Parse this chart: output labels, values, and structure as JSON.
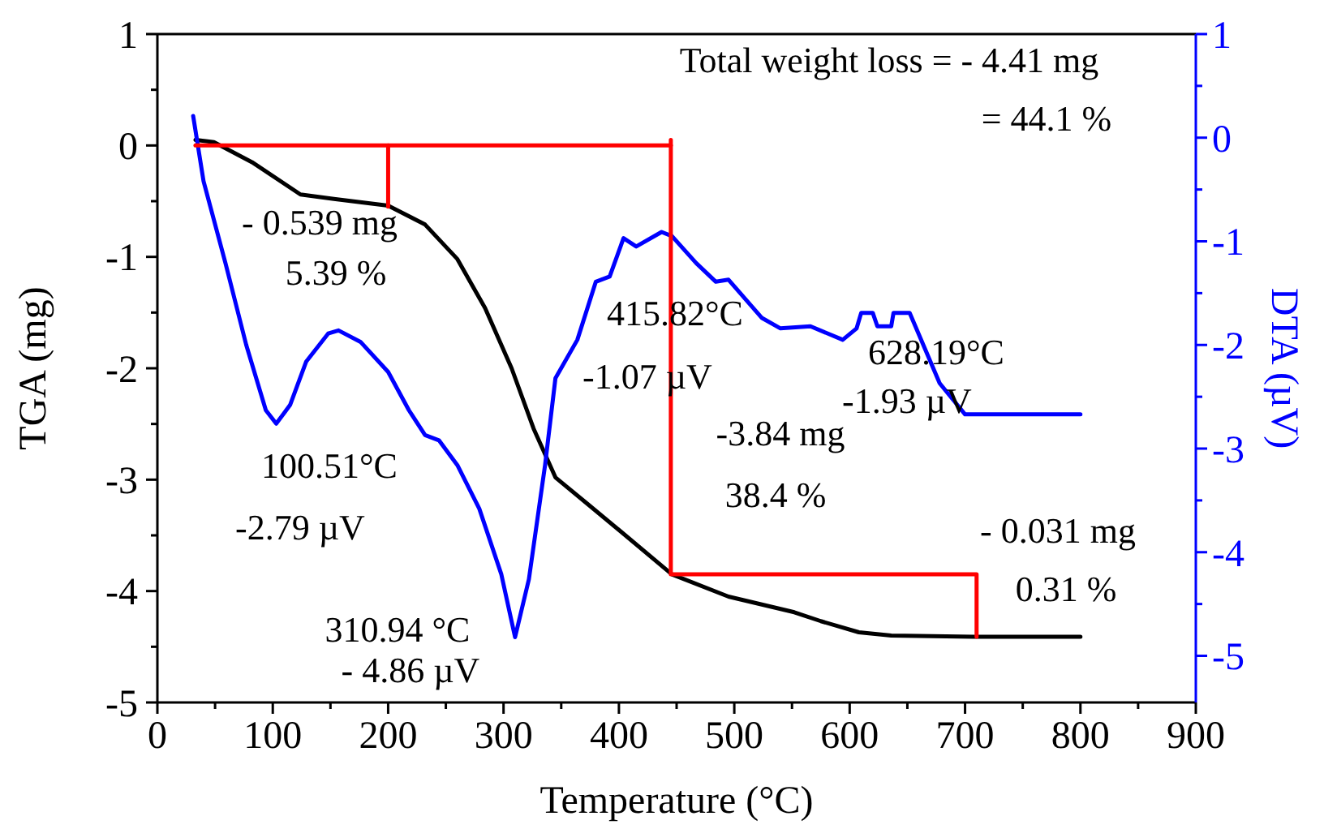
{
  "chart_data": {
    "type": "line",
    "xlabel": "Temperature (°C)",
    "ylabel": "TGA (mg)",
    "y2label": "DTA (µV)",
    "xlim": [
      0,
      900
    ],
    "xticks": [
      0,
      {
        "value": 50,
        "label": null
      },
      100,
      {
        "value": 150,
        "label": null
      },
      200,
      {
        "value": 250,
        "label": null
      },
      300,
      {
        "value": 350,
        "label": null
      },
      400,
      {
        "value": 450,
        "label": null
      },
      500,
      {
        "value": 550,
        "label": null
      },
      600,
      {
        "value": 650,
        "label": null
      },
      700,
      {
        "value": 750,
        "label": null
      },
      800,
      {
        "value": 850,
        "label": null
      },
      900
    ],
    "ylim": [
      -5,
      1
    ],
    "yticks": [
      -5,
      {
        "value": -4.5,
        "label": null
      },
      -4,
      {
        "value": -3.5,
        "label": null
      },
      -3,
      {
        "value": -2.5,
        "label": null
      },
      -2,
      {
        "value": -1.5,
        "label": null
      },
      -1,
      {
        "value": -0.5,
        "label": null
      },
      0,
      {
        "value": 0.5,
        "label": null
      },
      1
    ],
    "y2lim": [
      -5.45,
      1
    ],
    "y2ticks": [
      -5,
      {
        "value": -4.5,
        "label": null
      },
      -4,
      {
        "value": -3.5,
        "label": null
      },
      -3,
      {
        "value": -2.5,
        "label": null
      },
      -2,
      {
        "value": -1.5,
        "label": null
      },
      -1,
      {
        "value": -0.5,
        "label": null
      },
      0,
      {
        "value": 0.5,
        "label": null
      },
      1
    ],
    "grid": false,
    "marker": "none",
    "line_style": "solid",
    "series": [
      {
        "color": "#000000",
        "x": [
          33,
          49,
          82,
          124,
          153,
          200,
          232,
          260,
          284,
          307,
          326,
          345,
          373,
          401,
          446,
          495,
          552,
          575,
          608,
          636,
          707,
          800
        ],
        "values": [
          0.05,
          0.03,
          -0.15,
          -0.44,
          -0.48,
          -0.54,
          -0.71,
          -1.02,
          -1.46,
          -2.0,
          -2.54,
          -2.98,
          -3.22,
          -3.46,
          -3.85,
          -4.05,
          -4.19,
          -4.27,
          -4.37,
          -4.4,
          -4.41,
          -4.41
        ]
      },
      {
        "color": "#0000ff",
        "axis": "y2",
        "x": [
          31,
          40,
          59,
          77,
          94,
          103,
          115,
          129,
          148,
          157,
          176,
          200,
          218,
          232,
          244,
          260,
          279,
          298,
          310,
          322,
          336,
          345,
          364,
          380,
          392,
          404,
          415,
          437,
          446,
          467,
          484,
          495,
          524,
          540,
          566,
          594,
          606,
          610,
          620,
          624,
          636,
          638,
          652,
          678,
          700,
          800
        ],
        "values": [
          0.21,
          -0.42,
          -1.21,
          -2.0,
          -2.63,
          -2.76,
          -2.58,
          -2.16,
          -1.89,
          -1.86,
          -1.97,
          -2.26,
          -2.63,
          -2.87,
          -2.92,
          -3.16,
          -3.58,
          -4.21,
          -4.82,
          -4.26,
          -3.16,
          -2.32,
          -1.95,
          -1.39,
          -1.34,
          -0.97,
          -1.05,
          -0.91,
          -0.95,
          -1.21,
          -1.39,
          -1.37,
          -1.74,
          -1.84,
          -1.82,
          -1.95,
          -1.84,
          -1.69,
          -1.69,
          -1.82,
          -1.82,
          -1.69,
          -1.69,
          -2.37,
          -2.67,
          -2.67
        ]
      },
      {
        "color": "#ff0000",
        "x": [
          33,
          445
        ],
        "values": [
          0,
          0
        ]
      },
      {
        "color": "#ff0000",
        "x": [
          200,
          200
        ],
        "values": [
          0,
          -0.55
        ]
      },
      {
        "color": "#ff0000",
        "x": [
          445,
          445,
          710,
          710
        ],
        "values": [
          0.05,
          -3.85,
          -3.85,
          -4.41
        ]
      }
    ],
    "annotations": [
      "Total weight loss = - 4.41 mg",
      "= 44.1 %",
      "- 0.539 mg",
      "5.39 %",
      "100.51°C",
      "-2.79 µV",
      "310.94 °C",
      "- 4.86 µV",
      "415.82°C",
      "-1.07 µV",
      "628.19°C",
      "-1.93 µV",
      "-3.84 mg",
      "38.4 %",
      "- 0.031 mg",
      "0.31 %"
    ]
  }
}
